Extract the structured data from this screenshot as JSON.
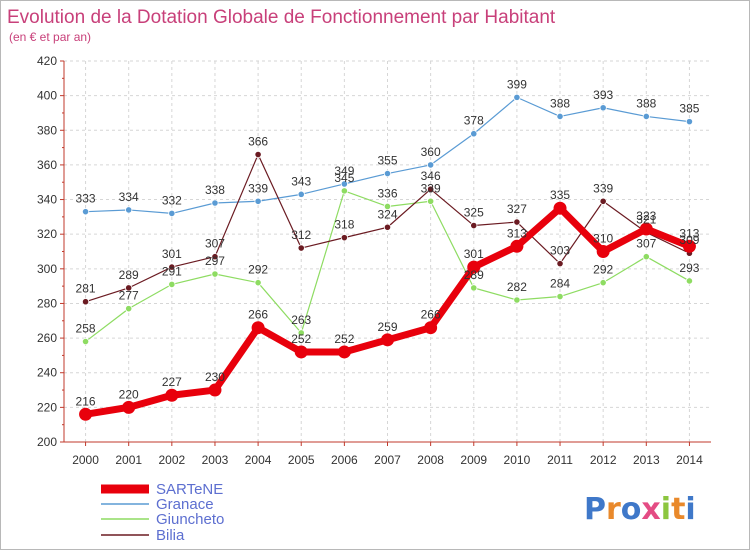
{
  "chart_data": {
    "type": "line",
    "title": "Evolution de la Dotation Globale de Fonctionnement par Habitant",
    "subtitle": "(en € et par an)",
    "x": [
      "2000",
      "2001",
      "2002",
      "2003",
      "2004",
      "2005",
      "2006",
      "2007",
      "2008",
      "2009",
      "2010",
      "2011",
      "2012",
      "2013",
      "2014"
    ],
    "yticks": [
      "200",
      "220",
      "240",
      "260",
      "280",
      "300",
      "320",
      "340",
      "360",
      "380",
      "400",
      "420"
    ],
    "ylim": [
      200,
      420
    ],
    "grid": true,
    "legend_position": "bottom-left",
    "series": [
      {
        "name": "SARTeNE",
        "color": "#e8000c",
        "values": [
          216,
          220,
          227,
          230,
          266,
          252,
          252,
          259,
          266,
          301,
          313,
          335,
          310,
          323,
          313
        ]
      },
      {
        "name": "Granace",
        "color": "#5a9bd4",
        "values": [
          333,
          334,
          332,
          338,
          339,
          343,
          349,
          355,
          360,
          378,
          399,
          388,
          393,
          388,
          385
        ]
      },
      {
        "name": "Giuncheto",
        "color": "#8edc62",
        "values": [
          258,
          277,
          291,
          297,
          292,
          263,
          345,
          336,
          339,
          289,
          282,
          284,
          292,
          307,
          293
        ]
      },
      {
        "name": "Bilia",
        "color": "#6b1b22",
        "values": [
          281,
          289,
          301,
          307,
          366,
          312,
          318,
          324,
          346,
          325,
          327,
          303,
          339,
          321,
          309
        ]
      }
    ]
  },
  "logo": {
    "icon": "proxiti-logo",
    "letters": [
      {
        "ch": "P",
        "color": "#3f78c9"
      },
      {
        "ch": "r",
        "color": "#e9892b"
      },
      {
        "ch": "o",
        "color": "#3f78c9"
      },
      {
        "ch": "x",
        "color": "#e44c84"
      },
      {
        "ch": "i",
        "color": "#8cc63f"
      },
      {
        "ch": "t",
        "color": "#e9892b"
      },
      {
        "ch": "i",
        "color": "#3f78c9"
      }
    ]
  }
}
